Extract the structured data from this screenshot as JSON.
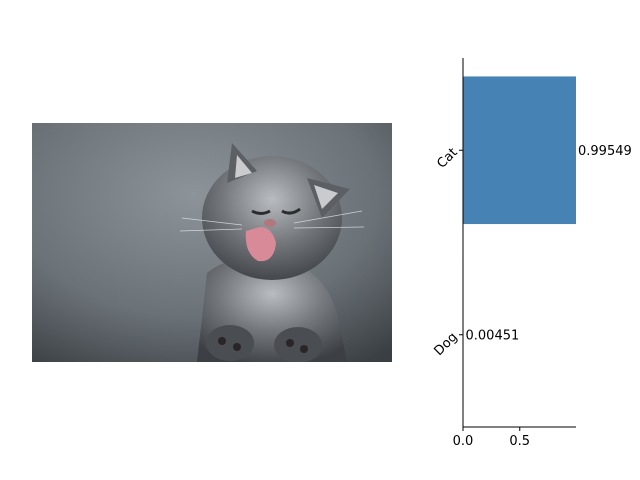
{
  "image": {
    "subject": "grey kitten licking glass",
    "colors": {
      "bg_light": "#8d9499",
      "bg_dark": "#3a3f43",
      "fur": "#6f7378",
      "tongue": "#d98a98"
    }
  },
  "chart_data": {
    "type": "bar",
    "orientation": "horizontal",
    "categories": [
      "Cat",
      "Dog"
    ],
    "values": [
      0.99549,
      0.00451
    ],
    "value_labels": [
      "0.99549",
      "0.00451"
    ],
    "xticks": [
      "0.0",
      "0.5"
    ],
    "xlim": [
      0,
      0.99549
    ],
    "bar_color": "#4682b4",
    "spines": [
      "left",
      "bottom"
    ],
    "grid": false
  }
}
